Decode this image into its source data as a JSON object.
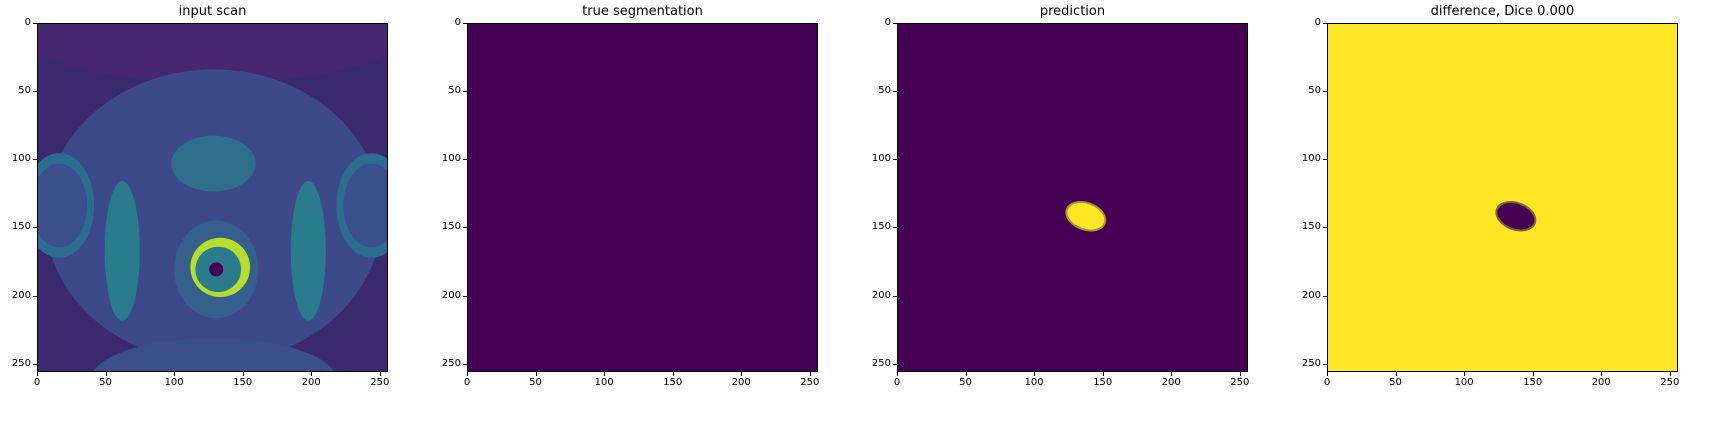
{
  "panels": [
    {
      "title": "input scan",
      "kind": "scan"
    },
    {
      "title": "true segmentation",
      "kind": "empty"
    },
    {
      "title": "prediction",
      "kind": "prediction"
    },
    {
      "title": "difference, Dice 0.000",
      "kind": "difference"
    }
  ],
  "axis": {
    "x_ticks": [
      "0",
      "50",
      "100",
      "150",
      "200",
      "250"
    ],
    "y_ticks": [
      "0",
      "50",
      "100",
      "150",
      "200",
      "250"
    ],
    "x_range": [
      0,
      256
    ],
    "y_range": [
      0,
      256
    ]
  },
  "colors": {
    "viridis_dark": "#440154",
    "viridis_yellow": "#fde725",
    "viridis_teal": "#21918c",
    "viridis_blue": "#3b528b",
    "viridis_green": "#5ec962"
  },
  "blob": {
    "center_x": 137,
    "center_y": 141,
    "rx": 14,
    "ry": 9
  }
}
